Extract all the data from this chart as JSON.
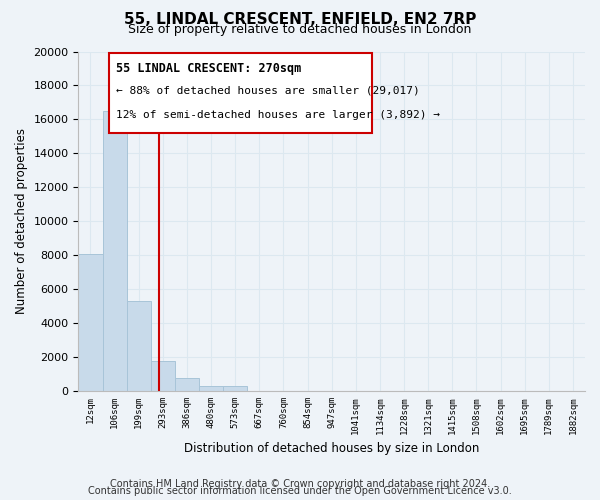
{
  "title": "55, LINDAL CRESCENT, ENFIELD, EN2 7RP",
  "subtitle": "Size of property relative to detached houses in London",
  "bar_labels": [
    "12sqm",
    "106sqm",
    "199sqm",
    "293sqm",
    "386sqm",
    "480sqm",
    "573sqm",
    "667sqm",
    "760sqm",
    "854sqm",
    "947sqm",
    "1041sqm",
    "1134sqm",
    "1228sqm",
    "1321sqm",
    "1415sqm",
    "1508sqm",
    "1602sqm",
    "1695sqm",
    "1789sqm",
    "1882sqm"
  ],
  "bar_values": [
    8100,
    16500,
    5300,
    1800,
    800,
    300,
    300,
    0,
    0,
    0,
    0,
    0,
    0,
    0,
    0,
    0,
    0,
    0,
    0,
    0,
    0
  ],
  "bar_color": "#c8daea",
  "bar_edge_color": "#a8c4d8",
  "ylim": [
    0,
    20000
  ],
  "yticks": [
    0,
    2000,
    4000,
    6000,
    8000,
    10000,
    12000,
    14000,
    16000,
    18000,
    20000
  ],
  "ylabel": "Number of detached properties",
  "xlabel": "Distribution of detached houses by size in London",
  "property_line_x": 2.83,
  "property_line_color": "#cc0000",
  "ann_line1": "55 LINDAL CRESCENT: 270sqm",
  "ann_line2": "← 88% of detached houses are smaller (29,017)",
  "ann_line3": "12% of semi-detached houses are larger (3,892) →",
  "annotation_box_edgecolor": "#cc0000",
  "annotation_box_facecolor": "#ffffff",
  "grid_color": "#dce8f0",
  "background_color": "#eef3f8",
  "footer_line1": "Contains HM Land Registry data © Crown copyright and database right 2024.",
  "footer_line2": "Contains public sector information licensed under the Open Government Licence v3.0.",
  "fig_width": 6.0,
  "fig_height": 5.0
}
